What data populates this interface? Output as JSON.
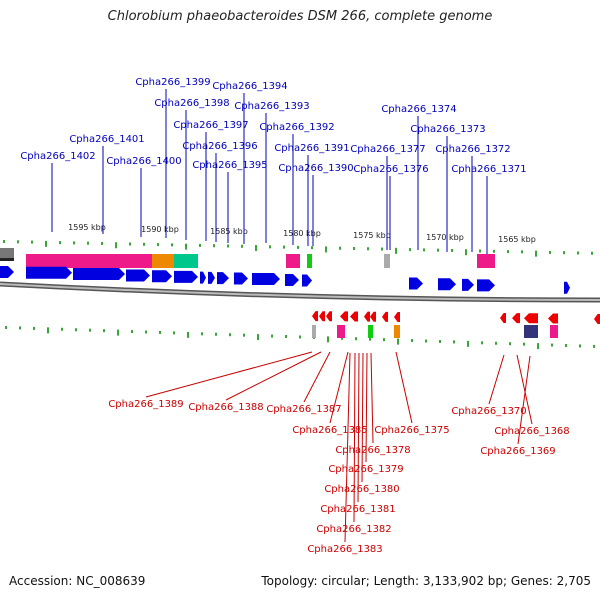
{
  "title": "Chlorobium phaeobacteroides DSM 266, complete genome",
  "footer": {
    "accession": "Accession: NC_008639",
    "topology": "Topology: circular; Length: 3,133,902 bp; Genes: 2,705"
  },
  "colors": {
    "forward_label": "#0000bb",
    "reverse_label": "#cc0000",
    "forward_gene": "#0000e0",
    "reverse_gene": "#ee0000",
    "backbone": "#888888",
    "tick": "#3aa53a",
    "magenta_feature": "#ee1a8a",
    "orange_feature": "#ee8800",
    "teal_feature": "#00c88c",
    "green_feature": "#11cc11",
    "gray_feature": "#aaaaaa",
    "navy_feature": "#33337a"
  },
  "scale": {
    "labels": [
      "1595 kbp",
      "1590 kbp",
      "1585 kbp",
      "1580 kbp",
      "1575 kbp",
      "1570 kbp",
      "1565 kbp"
    ]
  },
  "forward_labels": [
    "Cpha266_1399",
    "Cpha266_1394",
    "Cpha266_1398",
    "Cpha266_1393",
    "Cpha266_1374",
    "Cpha266_1397",
    "Cpha266_1392",
    "Cpha266_1373",
    "Cpha266_1401",
    "Cpha266_1396",
    "Cpha266_1391",
    "Cpha266_1377",
    "Cpha266_1372",
    "Cpha266_1402",
    "Cpha266_1400",
    "Cpha266_1395",
    "Cpha266_1390",
    "Cpha266_1376",
    "Cpha266_1371"
  ],
  "reverse_labels": [
    "Cpha266_1389",
    "Cpha266_1388",
    "Cpha266_1387",
    "Cpha266_1370",
    "Cpha266_1385",
    "Cpha266_1375",
    "Cpha266_1368",
    "Cpha266_1378",
    "Cpha266_1369",
    "Cpha266_1379",
    "Cpha266_1380",
    "Cpha266_1381",
    "Cpha266_1382",
    "Cpha266_1383"
  ]
}
